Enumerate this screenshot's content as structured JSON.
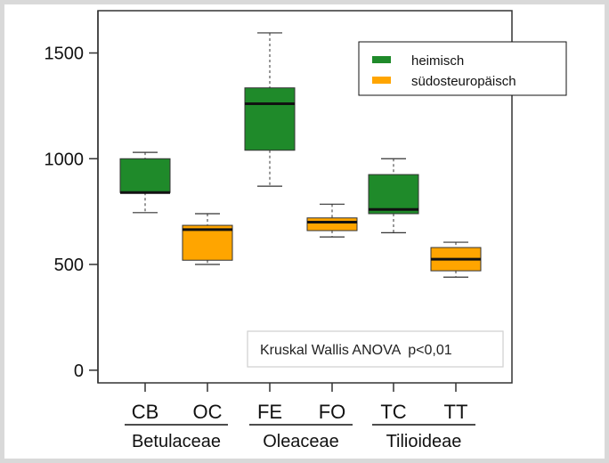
{
  "chart_data": {
    "type": "boxplot",
    "ylim": [
      -60,
      1700
    ],
    "yticks": [
      0,
      500,
      1000,
      1500
    ],
    "categories": [
      "CB",
      "OC",
      "FE",
      "FO",
      "TC",
      "TT"
    ],
    "groups": [
      {
        "label": "Betulaceae",
        "categories": [
          "CB",
          "OC"
        ]
      },
      {
        "label": "Oleaceae",
        "categories": [
          "FE",
          "FO"
        ]
      },
      {
        "label": "Tilioideae",
        "categories": [
          "TC",
          "TT"
        ]
      }
    ],
    "series": [
      {
        "name": "heimisch",
        "color": "#1f8a2a"
      },
      {
        "name": "südosteuropäisch",
        "color": "#ffa500"
      }
    ],
    "boxes": [
      {
        "category": "CB",
        "series": "heimisch",
        "min": 745,
        "q1": 840,
        "median": 840,
        "q3": 1000,
        "max": 1030
      },
      {
        "category": "OC",
        "series": "südosteuropäisch",
        "min": 500,
        "q1": 520,
        "median": 665,
        "q3": 685,
        "max": 740
      },
      {
        "category": "FE",
        "series": "heimisch",
        "min": 870,
        "q1": 1040,
        "median": 1260,
        "q3": 1335,
        "max": 1595
      },
      {
        "category": "FO",
        "series": "südosteuropäisch",
        "min": 630,
        "q1": 660,
        "median": 700,
        "q3": 720,
        "max": 785
      },
      {
        "category": "TC",
        "series": "heimisch",
        "min": 650,
        "q1": 740,
        "median": 760,
        "q3": 925,
        "max": 1000
      },
      {
        "category": "TT",
        "series": "südosteuropäisch",
        "min": 440,
        "q1": 470,
        "median": 525,
        "q3": 580,
        "max": 605
      }
    ],
    "legend_position": "top-right",
    "annotation": "Kruskal Wallis ANOVA  p<0,01"
  }
}
